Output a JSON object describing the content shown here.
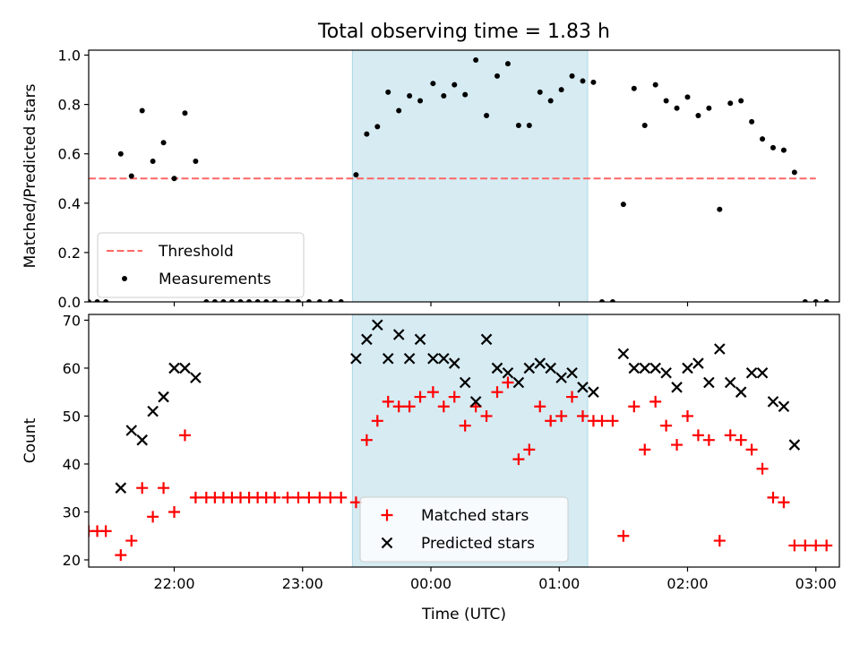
{
  "figure": {
    "title": "Total observing time = 1.83 h"
  },
  "chart_data": [
    {
      "type": "scatter",
      "panel": "top",
      "ylabel": "Matched/Predicted stars",
      "xlim": [
        -40,
        311
      ],
      "ylim": [
        0,
        1.02
      ],
      "x_ticks": [
        0,
        60,
        120,
        180,
        240,
        300
      ],
      "x_tick_labels": [
        "",
        "",
        "",
        "",
        "",
        ""
      ],
      "y_ticks": [
        0.0,
        0.2,
        0.4,
        0.6,
        0.8,
        1.0
      ],
      "y_tick_labels": [
        "0.0",
        "0.2",
        "0.4",
        "0.6",
        "0.8",
        "1.0"
      ],
      "shaded_region": {
        "x": [
          83.3,
          193.3
        ],
        "color": "#add8e6"
      },
      "legend_position": "lower-left",
      "threshold": {
        "name": "Threshold",
        "y": 0.5,
        "x": [
          -40,
          300
        ],
        "color": "#ff6666",
        "style": "dashed"
      },
      "series": [
        {
          "name": "Measurements",
          "color": "#000000",
          "marker": "dot",
          "points": [
            [
              -40,
              0
            ],
            [
              -36,
              0
            ],
            [
              -32,
              0
            ],
            [
              -25,
              0.6
            ],
            [
              -20,
              0.51
            ],
            [
              -15,
              0.775
            ],
            [
              -10,
              0.57
            ],
            [
              -5,
              0.645
            ],
            [
              0,
              0.5
            ],
            [
              5,
              0.765
            ],
            [
              10,
              0.57
            ],
            [
              15,
              0
            ],
            [
              19,
              0
            ],
            [
              23,
              0
            ],
            [
              27,
              0
            ],
            [
              31,
              0
            ],
            [
              35,
              0
            ],
            [
              39,
              0
            ],
            [
              43,
              0
            ],
            [
              47,
              0
            ],
            [
              53,
              0
            ],
            [
              58,
              0
            ],
            [
              63,
              0
            ],
            [
              68,
              0
            ],
            [
              73,
              0
            ],
            [
              78,
              0
            ],
            [
              85,
              0.515
            ],
            [
              90,
              0.68
            ],
            [
              95,
              0.71
            ],
            [
              100,
              0.85
            ],
            [
              105,
              0.775
            ],
            [
              110,
              0.835
            ],
            [
              115,
              0.815
            ],
            [
              121,
              0.885
            ],
            [
              126,
              0.835
            ],
            [
              131,
              0.88
            ],
            [
              136,
              0.84
            ],
            [
              141,
              0.98
            ],
            [
              146,
              0.755
            ],
            [
              151,
              0.915
            ],
            [
              156,
              0.965
            ],
            [
              161,
              0.715
            ],
            [
              166,
              0.715
            ],
            [
              171,
              0.85
            ],
            [
              176,
              0.815
            ],
            [
              181,
              0.86
            ],
            [
              186,
              0.915
            ],
            [
              191,
              0.895
            ],
            [
              196,
              0.89
            ],
            [
              200,
              0
            ],
            [
              205,
              0
            ],
            [
              210,
              0.395
            ],
            [
              215,
              0.865
            ],
            [
              220,
              0.715
            ],
            [
              225,
              0.88
            ],
            [
              230,
              0.815
            ],
            [
              235,
              0.785
            ],
            [
              240,
              0.83
            ],
            [
              245,
              0.755
            ],
            [
              250,
              0.785
            ],
            [
              255,
              0.375
            ],
            [
              260,
              0.805
            ],
            [
              265,
              0.815
            ],
            [
              270,
              0.73
            ],
            [
              275,
              0.66
            ],
            [
              280,
              0.625
            ],
            [
              285,
              0.615
            ],
            [
              290,
              0.525
            ],
            [
              295,
              0
            ],
            [
              300,
              0
            ],
            [
              305,
              0
            ]
          ]
        }
      ]
    },
    {
      "type": "scatter",
      "panel": "bottom",
      "xlabel": "Time (UTC)",
      "ylabel": "Count",
      "xlim": [
        -40,
        311
      ],
      "ylim": [
        18.5,
        71.2
      ],
      "x_ticks": [
        0,
        60,
        120,
        180,
        240,
        300
      ],
      "x_tick_labels": [
        "22:00",
        "23:00",
        "00:00",
        "01:00",
        "02:00",
        "03:00"
      ],
      "y_ticks": [
        20,
        30,
        40,
        50,
        60,
        70
      ],
      "y_tick_labels": [
        "20",
        "30",
        "40",
        "50",
        "60",
        "70"
      ],
      "shaded_region": {
        "x": [
          83.3,
          193.3
        ],
        "color": "#add8e6"
      },
      "legend_position": "lower-center",
      "series": [
        {
          "name": "Matched stars",
          "color": "#ff0000",
          "marker": "plus",
          "points": [
            [
              -40,
              26
            ],
            [
              -36,
              26
            ],
            [
              -32,
              26
            ],
            [
              -25,
              21
            ],
            [
              -20,
              24
            ],
            [
              -15,
              35
            ],
            [
              -10,
              29
            ],
            [
              -5,
              35
            ],
            [
              0,
              30
            ],
            [
              5,
              46
            ],
            [
              10,
              33
            ],
            [
              15,
              33
            ],
            [
              19,
              33
            ],
            [
              23,
              33
            ],
            [
              27,
              33
            ],
            [
              31,
              33
            ],
            [
              35,
              33
            ],
            [
              39,
              33
            ],
            [
              43,
              33
            ],
            [
              47,
              33
            ],
            [
              53,
              33
            ],
            [
              58,
              33
            ],
            [
              63,
              33
            ],
            [
              68,
              33
            ],
            [
              73,
              33
            ],
            [
              78,
              33
            ],
            [
              85,
              32
            ],
            [
              90,
              45
            ],
            [
              95,
              49
            ],
            [
              100,
              53
            ],
            [
              105,
              52
            ],
            [
              110,
              52
            ],
            [
              115,
              54
            ],
            [
              121,
              55
            ],
            [
              126,
              52
            ],
            [
              131,
              54
            ],
            [
              136,
              48
            ],
            [
              141,
              52
            ],
            [
              146,
              50
            ],
            [
              151,
              55
            ],
            [
              156,
              57
            ],
            [
              161,
              41
            ],
            [
              166,
              43
            ],
            [
              171,
              52
            ],
            [
              176,
              49
            ],
            [
              181,
              50
            ],
            [
              186,
              54
            ],
            [
              191,
              50
            ],
            [
              196,
              49
            ],
            [
              200,
              49
            ],
            [
              205,
              49
            ],
            [
              210,
              25
            ],
            [
              215,
              52
            ],
            [
              220,
              43
            ],
            [
              225,
              53
            ],
            [
              230,
              48
            ],
            [
              235,
              44
            ],
            [
              240,
              50
            ],
            [
              245,
              46
            ],
            [
              250,
              45
            ],
            [
              255,
              24
            ],
            [
              260,
              46
            ],
            [
              265,
              45
            ],
            [
              270,
              43
            ],
            [
              275,
              39
            ],
            [
              280,
              33
            ],
            [
              285,
              32
            ],
            [
              290,
              23
            ],
            [
              295,
              23
            ],
            [
              300,
              23
            ],
            [
              305,
              23
            ]
          ]
        },
        {
          "name": "Predicted stars",
          "color": "#000000",
          "marker": "x",
          "points": [
            [
              -25,
              35
            ],
            [
              -20,
              47
            ],
            [
              -15,
              45
            ],
            [
              -10,
              51
            ],
            [
              -5,
              54
            ],
            [
              0,
              60
            ],
            [
              5,
              60
            ],
            [
              10,
              58
            ],
            [
              85,
              62
            ],
            [
              90,
              66
            ],
            [
              95,
              69
            ],
            [
              100,
              62
            ],
            [
              105,
              67
            ],
            [
              110,
              62
            ],
            [
              115,
              66
            ],
            [
              121,
              62
            ],
            [
              126,
              62
            ],
            [
              131,
              61
            ],
            [
              136,
              57
            ],
            [
              141,
              53
            ],
            [
              146,
              66
            ],
            [
              151,
              60
            ],
            [
              156,
              59
            ],
            [
              161,
              57
            ],
            [
              166,
              60
            ],
            [
              171,
              61
            ],
            [
              176,
              60
            ],
            [
              181,
              58
            ],
            [
              186,
              59
            ],
            [
              191,
              56
            ],
            [
              196,
              55
            ],
            [
              210,
              63
            ],
            [
              215,
              60
            ],
            [
              220,
              60
            ],
            [
              225,
              60
            ],
            [
              230,
              59
            ],
            [
              235,
              56
            ],
            [
              240,
              60
            ],
            [
              245,
              61
            ],
            [
              250,
              57
            ],
            [
              255,
              64
            ],
            [
              260,
              57
            ],
            [
              265,
              55
            ],
            [
              270,
              59
            ],
            [
              275,
              59
            ],
            [
              280,
              53
            ],
            [
              285,
              52
            ],
            [
              290,
              44
            ]
          ]
        }
      ]
    }
  ]
}
